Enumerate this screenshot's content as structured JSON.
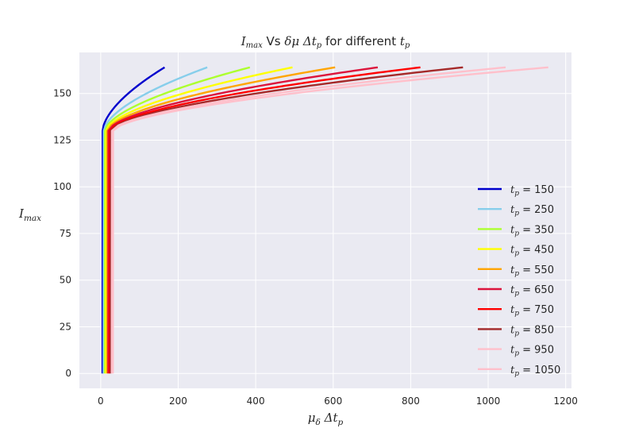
{
  "chart_data": {
    "type": "line",
    "title": "I_max Vs δμ Δt_p for different t_p",
    "title_parts": [
      "I",
      "max",
      " Vs ",
      "δμ Δt",
      "p",
      " for different ",
      "t",
      "p"
    ],
    "xlabel": "μ_δ Δt_p",
    "ylabel": "I_max",
    "xlim": [
      -55,
      1215
    ],
    "ylim": [
      -8,
      172
    ],
    "x_ticks": [
      0,
      200,
      400,
      600,
      800,
      1000,
      1200
    ],
    "y_ticks": [
      0,
      25,
      50,
      75,
      100,
      125,
      150
    ],
    "grid": true,
    "legend_position": "center-right",
    "series": [
      {
        "name": "t_p = 150",
        "tp": 150,
        "color": "#0000cd",
        "x_vertical": 4.5,
        "x_knee": 5,
        "y_knee": 130,
        "x_end": 165,
        "y_end": 164
      },
      {
        "name": "t_p = 250",
        "tp": 250,
        "color": "#87ceeb",
        "x_vertical": 7.5,
        "x_knee": 8,
        "y_knee": 130,
        "x_end": 275,
        "y_end": 164
      },
      {
        "name": "t_p = 350",
        "tp": 350,
        "color": "#adff2f",
        "x_vertical": 10.5,
        "x_knee": 11,
        "y_knee": 130,
        "x_end": 385,
        "y_end": 164
      },
      {
        "name": "t_p = 450",
        "tp": 450,
        "color": "#ffff00",
        "x_vertical": 13.5,
        "x_knee": 14,
        "y_knee": 130,
        "x_end": 495,
        "y_end": 164
      },
      {
        "name": "t_p = 550",
        "tp": 550,
        "color": "#ffa500",
        "x_vertical": 16.5,
        "x_knee": 17,
        "y_knee": 130,
        "x_end": 605,
        "y_end": 164
      },
      {
        "name": "t_p = 650",
        "tp": 650,
        "color": "#dc143c",
        "x_vertical": 19.5,
        "x_knee": 20,
        "y_knee": 130,
        "x_end": 715,
        "y_end": 164
      },
      {
        "name": "t_p = 750",
        "tp": 750,
        "color": "#ff0000",
        "x_vertical": 22.5,
        "x_knee": 23,
        "y_knee": 130,
        "x_end": 825,
        "y_end": 164
      },
      {
        "name": "t_p = 850",
        "tp": 850,
        "color": "#a52a2a",
        "x_vertical": 25.5,
        "x_knee": 26,
        "y_knee": 130,
        "x_end": 935,
        "y_end": 164
      },
      {
        "name": "t_p = 950",
        "tp": 950,
        "color": "#ffc0cb",
        "x_vertical": 28.5,
        "x_knee": 29,
        "y_knee": 130,
        "x_end": 1045,
        "y_end": 164
      },
      {
        "name": "t_p = 1050",
        "tp": 1050,
        "color": "#ffc0cb",
        "x_vertical": 31.5,
        "x_knee": 32,
        "y_knee": 130,
        "x_end": 1155,
        "y_end": 164
      }
    ],
    "colors": {
      "plot_background": "#eaeaf2",
      "grid": "#ffffff",
      "text": "#262626"
    }
  }
}
